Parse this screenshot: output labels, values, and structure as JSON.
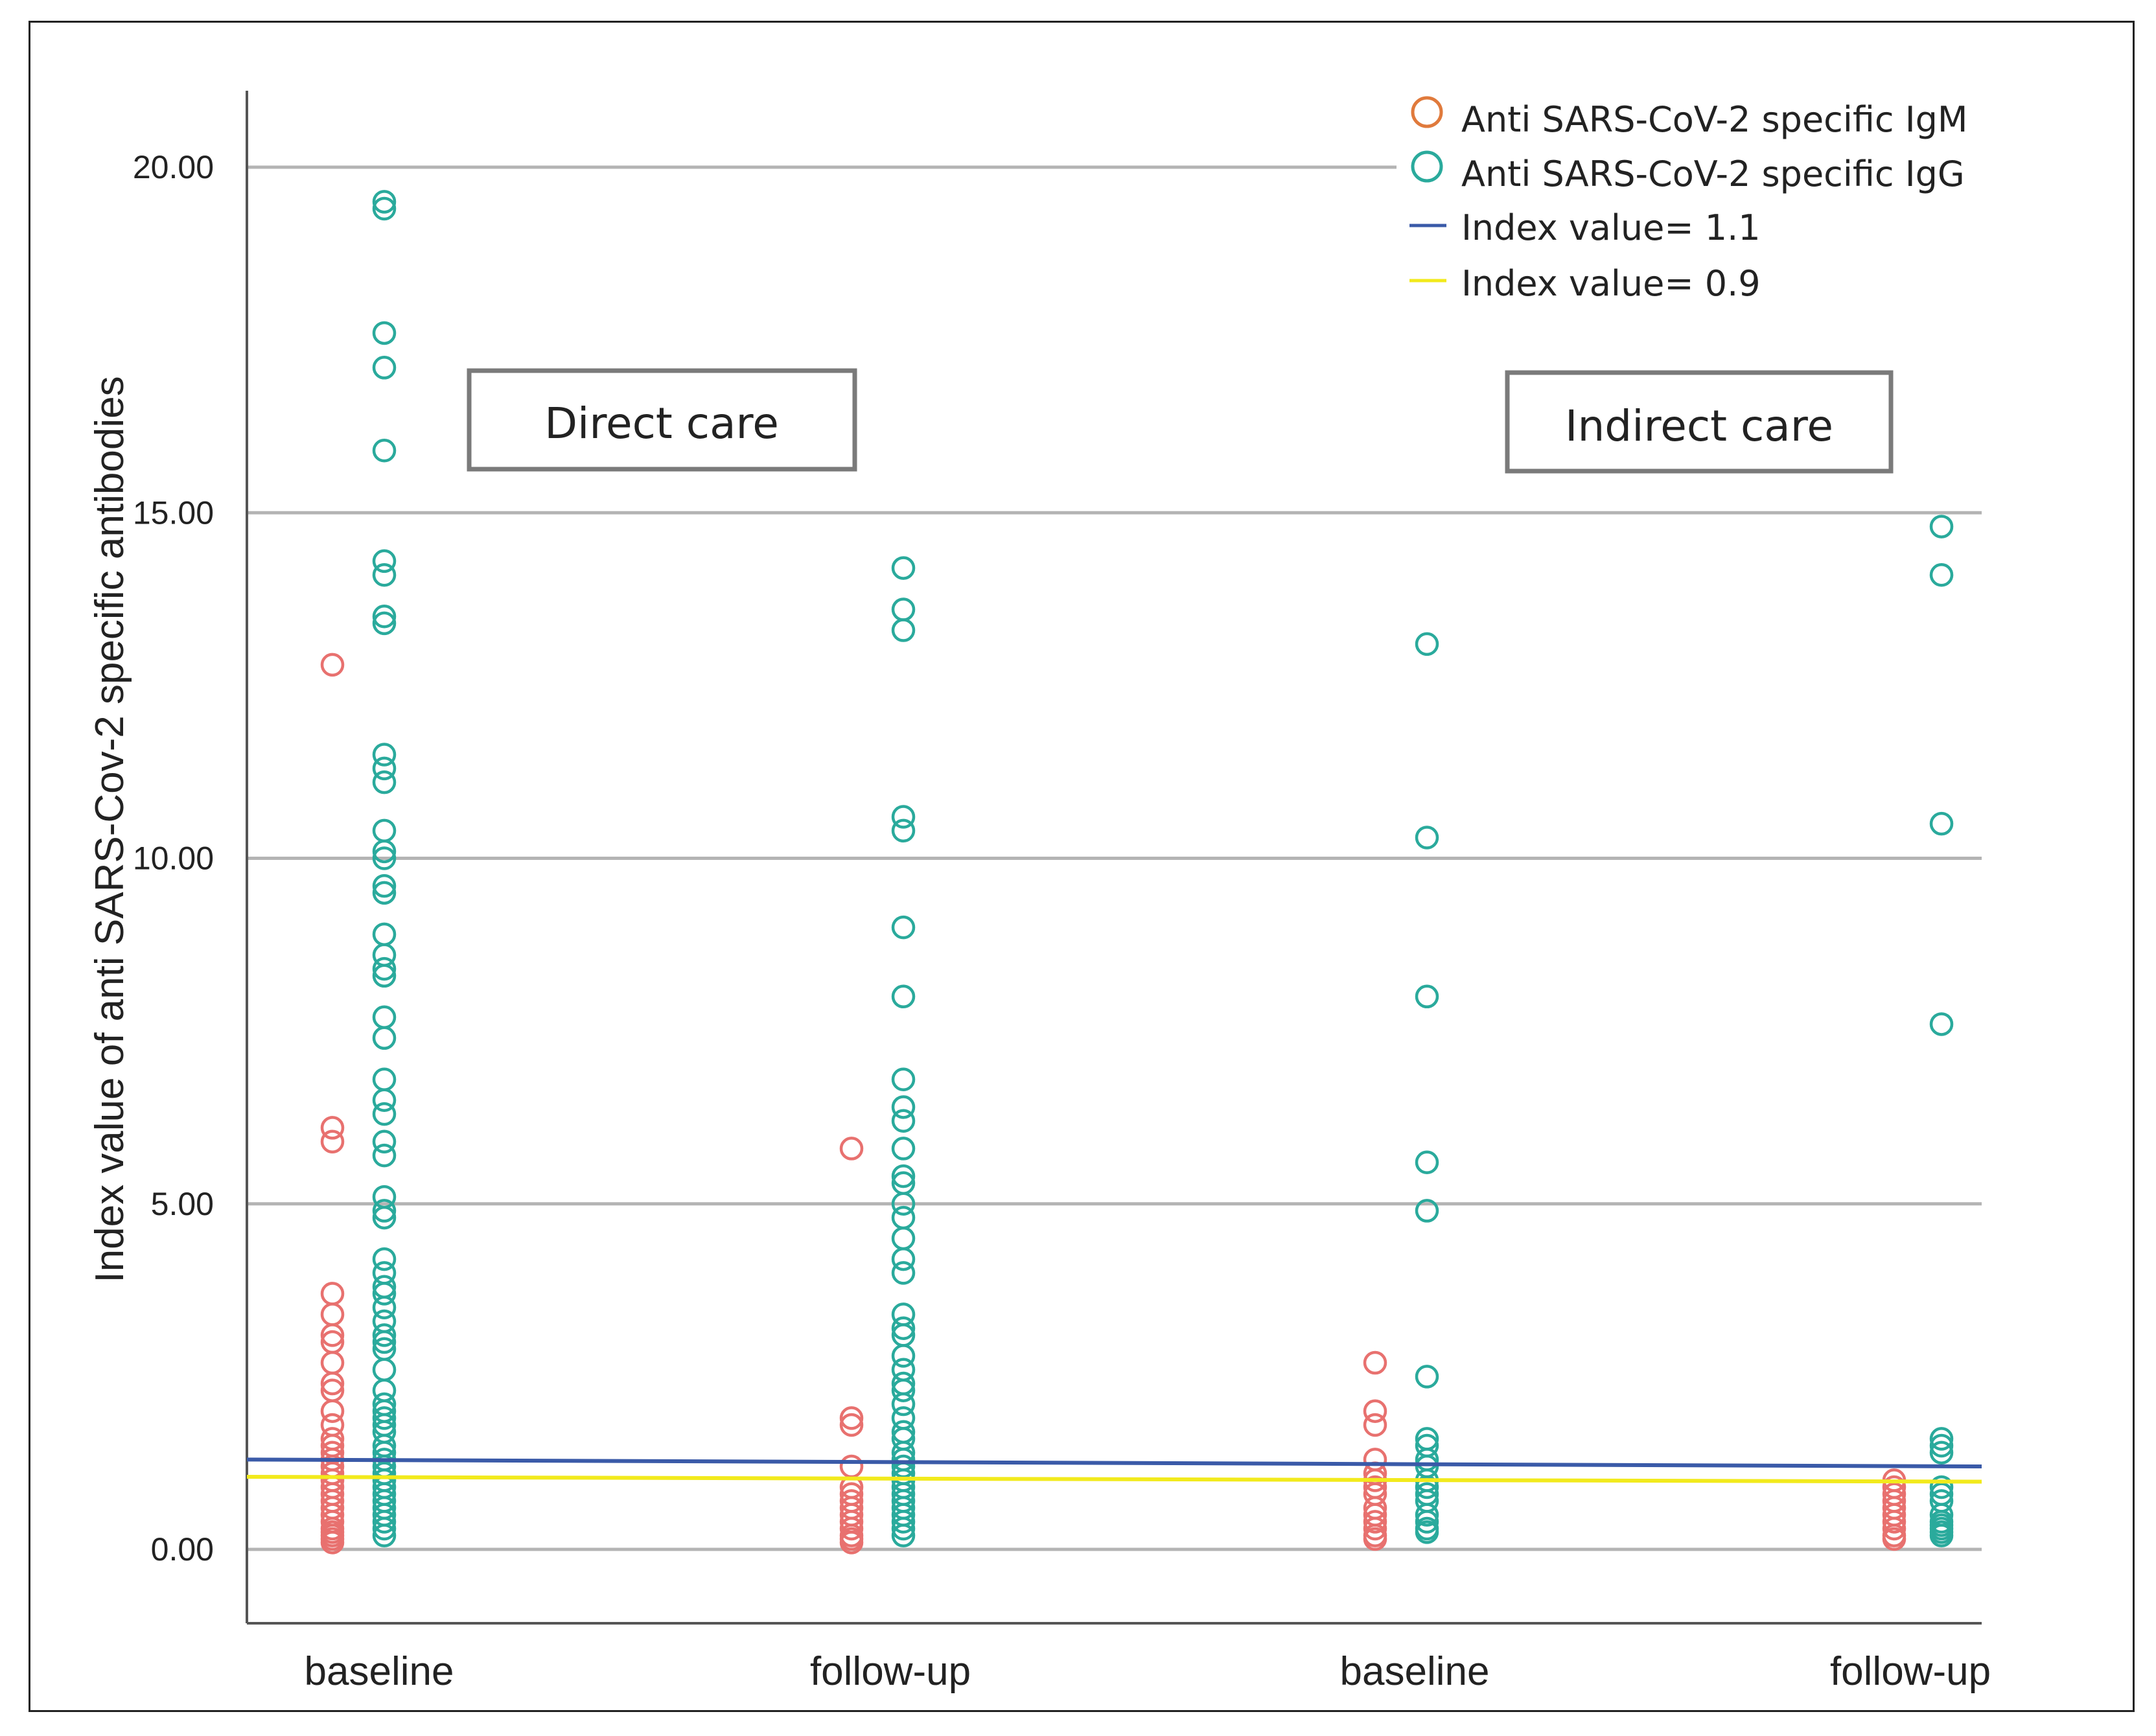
{
  "chart_data": {
    "type": "scatter",
    "title": "",
    "ylabel": "Index value of anti SARS-Cov-2 specific antibodies",
    "ylim": [
      -1.1,
      21.1
    ],
    "yticks": [
      "0.00",
      "5.00",
      "10.00",
      "15.00",
      "20.00"
    ],
    "ytick_values": [
      0,
      5,
      10,
      15,
      20
    ],
    "grid": true,
    "legend_position": "top-right",
    "categories": [
      "baseline",
      "follow-up",
      "baseline",
      "follow-up"
    ],
    "groups": [
      "Direct care",
      "Indirect care"
    ],
    "series": [
      {
        "name": "Anti SARS-CoV-2 specific IgM",
        "color": "#e8716f",
        "legend_color": "#e07a3c",
        "points": [
          [
            0,
            12.8
          ],
          [
            0,
            6.1
          ],
          [
            0,
            5.9
          ],
          [
            0,
            3.7
          ],
          [
            0,
            3.4
          ],
          [
            0,
            3.1
          ],
          [
            0,
            3.0
          ],
          [
            0,
            2.7
          ],
          [
            0,
            2.4
          ],
          [
            0,
            2.3
          ],
          [
            0,
            2.0
          ],
          [
            0,
            1.8
          ],
          [
            0,
            1.6
          ],
          [
            0,
            1.5
          ],
          [
            0,
            1.4
          ],
          [
            0,
            1.3
          ],
          [
            0,
            1.2
          ],
          [
            0,
            1.1
          ],
          [
            0,
            1.0
          ],
          [
            0,
            0.9
          ],
          [
            0,
            0.8
          ],
          [
            0,
            0.7
          ],
          [
            0,
            0.6
          ],
          [
            0,
            0.5
          ],
          [
            0,
            0.4
          ],
          [
            0,
            0.3
          ],
          [
            0,
            0.25
          ],
          [
            0,
            0.2
          ],
          [
            0,
            0.15
          ],
          [
            0,
            0.1
          ],
          [
            1,
            5.8
          ],
          [
            1,
            1.9
          ],
          [
            1,
            1.8
          ],
          [
            1,
            1.2
          ],
          [
            1,
            0.9
          ],
          [
            1,
            0.8
          ],
          [
            1,
            0.7
          ],
          [
            1,
            0.6
          ],
          [
            1,
            0.5
          ],
          [
            1,
            0.4
          ],
          [
            1,
            0.3
          ],
          [
            1,
            0.2
          ],
          [
            1,
            0.15
          ],
          [
            1,
            0.1
          ],
          [
            2,
            2.7
          ],
          [
            2,
            2.0
          ],
          [
            2,
            1.8
          ],
          [
            2,
            1.3
          ],
          [
            2,
            1.1
          ],
          [
            2,
            1.0
          ],
          [
            2,
            0.9
          ],
          [
            2,
            0.8
          ],
          [
            2,
            0.6
          ],
          [
            2,
            0.5
          ],
          [
            2,
            0.4
          ],
          [
            2,
            0.3
          ],
          [
            2,
            0.2
          ],
          [
            2,
            0.15
          ],
          [
            3,
            1.0
          ],
          [
            3,
            0.9
          ],
          [
            3,
            0.8
          ],
          [
            3,
            0.7
          ],
          [
            3,
            0.6
          ],
          [
            3,
            0.5
          ],
          [
            3,
            0.4
          ],
          [
            3,
            0.3
          ],
          [
            3,
            0.2
          ],
          [
            3,
            0.15
          ]
        ]
      },
      {
        "name": "Anti SARS-CoV-2 specific IgG",
        "color": "#2aaa9c",
        "legend_color": "#2aaa9c",
        "points": [
          [
            0,
            19.5
          ],
          [
            0,
            19.4
          ],
          [
            0,
            17.6
          ],
          [
            0,
            17.1
          ],
          [
            0,
            15.9
          ],
          [
            0,
            14.3
          ],
          [
            0,
            14.1
          ],
          [
            0,
            13.5
          ],
          [
            0,
            13.4
          ],
          [
            0,
            11.5
          ],
          [
            0,
            11.3
          ],
          [
            0,
            11.1
          ],
          [
            0,
            10.4
          ],
          [
            0,
            10.1
          ],
          [
            0,
            10.0
          ],
          [
            0,
            9.6
          ],
          [
            0,
            9.5
          ],
          [
            0,
            8.9
          ],
          [
            0,
            8.6
          ],
          [
            0,
            8.4
          ],
          [
            0,
            8.3
          ],
          [
            0,
            7.7
          ],
          [
            0,
            7.4
          ],
          [
            0,
            6.8
          ],
          [
            0,
            6.5
          ],
          [
            0,
            6.3
          ],
          [
            0,
            5.9
          ],
          [
            0,
            5.7
          ],
          [
            0,
            5.1
          ],
          [
            0,
            4.9
          ],
          [
            0,
            4.8
          ],
          [
            0,
            4.2
          ],
          [
            0,
            4.0
          ],
          [
            0,
            3.8
          ],
          [
            0,
            3.7
          ],
          [
            0,
            3.5
          ],
          [
            0,
            3.3
          ],
          [
            0,
            3.1
          ],
          [
            0,
            3.0
          ],
          [
            0,
            2.9
          ],
          [
            0,
            2.6
          ],
          [
            0,
            2.3
          ],
          [
            0,
            2.1
          ],
          [
            0,
            2.0
          ],
          [
            0,
            1.9
          ],
          [
            0,
            1.8
          ],
          [
            0,
            1.7
          ],
          [
            0,
            1.5
          ],
          [
            0,
            1.4
          ],
          [
            0,
            1.3
          ],
          [
            0,
            1.2
          ],
          [
            0,
            1.1
          ],
          [
            0,
            1.0
          ],
          [
            0,
            0.9
          ],
          [
            0,
            0.8
          ],
          [
            0,
            0.7
          ],
          [
            0,
            0.6
          ],
          [
            0,
            0.5
          ],
          [
            0,
            0.4
          ],
          [
            0,
            0.3
          ],
          [
            0,
            0.2
          ],
          [
            1,
            14.2
          ],
          [
            1,
            13.6
          ],
          [
            1,
            13.3
          ],
          [
            1,
            10.6
          ],
          [
            1,
            10.4
          ],
          [
            1,
            9.0
          ],
          [
            1,
            8.0
          ],
          [
            1,
            6.8
          ],
          [
            1,
            6.4
          ],
          [
            1,
            6.2
          ],
          [
            1,
            5.8
          ],
          [
            1,
            5.4
          ],
          [
            1,
            5.3
          ],
          [
            1,
            5.0
          ],
          [
            1,
            4.8
          ],
          [
            1,
            4.5
          ],
          [
            1,
            4.2
          ],
          [
            1,
            4.0
          ],
          [
            1,
            3.4
          ],
          [
            1,
            3.2
          ],
          [
            1,
            3.1
          ],
          [
            1,
            2.8
          ],
          [
            1,
            2.6
          ],
          [
            1,
            2.4
          ],
          [
            1,
            2.3
          ],
          [
            1,
            2.1
          ],
          [
            1,
            1.9
          ],
          [
            1,
            1.7
          ],
          [
            1,
            1.6
          ],
          [
            1,
            1.4
          ],
          [
            1,
            1.3
          ],
          [
            1,
            1.2
          ],
          [
            1,
            1.1
          ],
          [
            1,
            1.0
          ],
          [
            1,
            0.9
          ],
          [
            1,
            0.8
          ],
          [
            1,
            0.7
          ],
          [
            1,
            0.6
          ],
          [
            1,
            0.5
          ],
          [
            1,
            0.4
          ],
          [
            1,
            0.3
          ],
          [
            1,
            0.2
          ],
          [
            2,
            13.1
          ],
          [
            2,
            10.3
          ],
          [
            2,
            8.0
          ],
          [
            2,
            5.6
          ],
          [
            2,
            4.9
          ],
          [
            2,
            2.5
          ],
          [
            2,
            1.6
          ],
          [
            2,
            1.5
          ],
          [
            2,
            1.3
          ],
          [
            2,
            1.2
          ],
          [
            2,
            1.0
          ],
          [
            2,
            0.9
          ],
          [
            2,
            0.8
          ],
          [
            2,
            0.7
          ],
          [
            2,
            0.5
          ],
          [
            2,
            0.4
          ],
          [
            2,
            0.3
          ],
          [
            2,
            0.25
          ],
          [
            3,
            14.8
          ],
          [
            3,
            14.1
          ],
          [
            3,
            10.5
          ],
          [
            3,
            7.6
          ],
          [
            3,
            1.6
          ],
          [
            3,
            1.5
          ],
          [
            3,
            1.4
          ],
          [
            3,
            0.9
          ],
          [
            3,
            0.8
          ],
          [
            3,
            0.7
          ],
          [
            3,
            0.5
          ],
          [
            3,
            0.4
          ],
          [
            3,
            0.35
          ],
          [
            3,
            0.3
          ],
          [
            3,
            0.25
          ],
          [
            3,
            0.2
          ]
        ]
      }
    ],
    "reference_lines": [
      {
        "name": "Index value= 1.1",
        "color": "#3a5aa8",
        "y_start": 1.3,
        "y_end": 1.2
      },
      {
        "name": "Index value= 0.9",
        "color": "#f2ea1c",
        "y_start": 1.05,
        "y_end": 0.98
      }
    ]
  }
}
